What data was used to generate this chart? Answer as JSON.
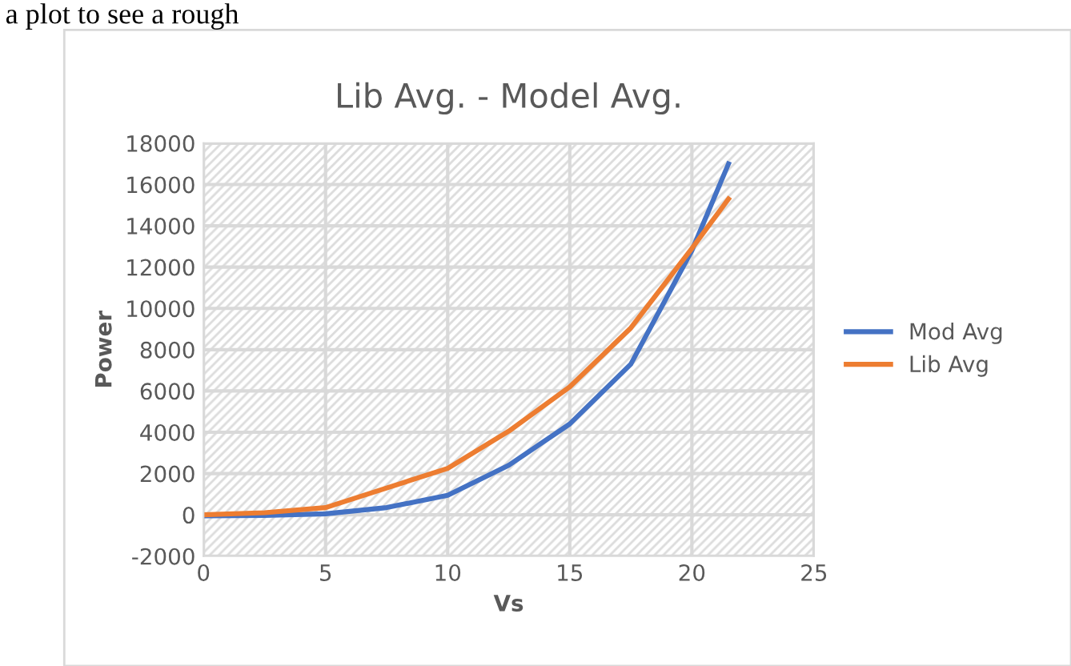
{
  "chart_data": {
    "type": "line",
    "title": "Lib Avg. - Model Avg.",
    "xlabel": "Vs",
    "ylabel": "Power",
    "annotations": [
      "a plot to see a rough"
    ],
    "series": [
      {
        "name": "Mod Avg",
        "color": "#4472c4",
        "x": [
          0,
          2.5,
          5,
          7.5,
          10,
          12.5,
          15,
          17.5,
          20,
          21.5
        ],
        "values": [
          -50,
          -30,
          50,
          350,
          950,
          2400,
          4400,
          7300,
          12800,
          17000
        ]
      },
      {
        "name": "Lib Avg",
        "color": "#ed7d31",
        "x": [
          0,
          2.5,
          5,
          7.5,
          10,
          12.5,
          15,
          17.5,
          20,
          21.5
        ],
        "values": [
          0,
          100,
          350,
          1300,
          2250,
          4050,
          6200,
          9050,
          12900,
          15300
        ]
      }
    ],
    "xlim": [
      0,
      25
    ],
    "xticks": [
      0,
      5,
      10,
      15,
      20,
      25
    ],
    "ylim": [
      -2000,
      18000
    ],
    "yticks": [
      -2000,
      0,
      2000,
      4000,
      6000,
      8000,
      10000,
      12000,
      14000,
      16000,
      18000
    ],
    "grid": true,
    "legend": "right",
    "marker": "none",
    "line_style": "solid"
  }
}
